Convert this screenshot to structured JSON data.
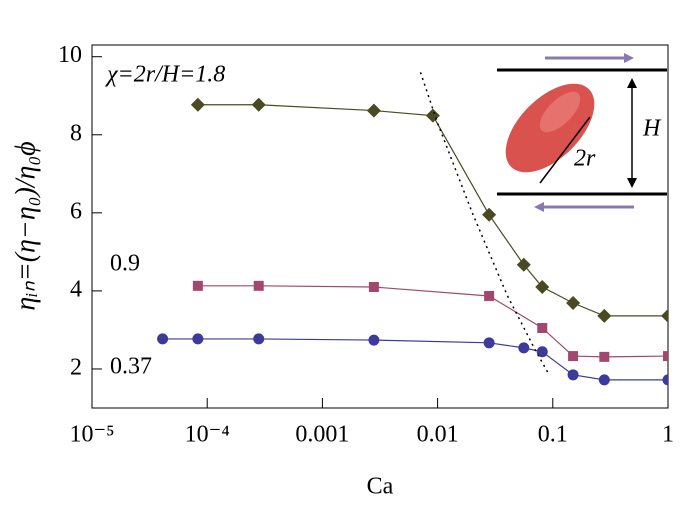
{
  "chart_data": {
    "type": "line",
    "xlabel": "Ca",
    "ylabel": "ηᵢₙ=(η−η₀)/η₀ϕ",
    "xscale": "log",
    "xlim": [
      1e-05,
      1
    ],
    "ylim": [
      1,
      10.3
    ],
    "xticks": [
      {
        "value": 1e-05,
        "label": "10⁻⁵"
      },
      {
        "value": 0.0001,
        "label": "10⁻⁴"
      },
      0.001,
      0.01,
      0.1,
      1
    ],
    "yticks": [
      2,
      4,
      6,
      8,
      10
    ],
    "series": [
      {
        "name": "χ=2r/H=1.8",
        "color": "#4a4a22",
        "marker": "diamond",
        "x": [
          8.3e-05,
          0.00028,
          0.0028,
          0.0091,
          0.028,
          0.056,
          0.081,
          0.15,
          0.28,
          1
        ],
        "values": [
          8.77,
          8.77,
          8.62,
          8.49,
          5.95,
          4.67,
          4.1,
          3.69,
          3.36,
          3.36
        ]
      },
      {
        "name": "0.9",
        "color": "#a2486f",
        "marker": "square",
        "x": [
          8.3e-05,
          0.00028,
          0.0028,
          0.028,
          0.081,
          0.15,
          0.28,
          1
        ],
        "values": [
          4.13,
          4.13,
          4.1,
          3.87,
          3.05,
          2.33,
          2.31,
          2.33
        ]
      },
      {
        "name": "0.37",
        "color": "#3b3b9c",
        "marker": "circle",
        "x": [
          4.1e-05,
          8.3e-05,
          0.00028,
          0.0028,
          0.028,
          0.056,
          0.081,
          0.15,
          0.28,
          1
        ],
        "values": [
          2.77,
          2.77,
          2.77,
          2.74,
          2.67,
          2.54,
          2.44,
          1.85,
          1.72,
          1.72
        ]
      },
      {
        "color": "#000000",
        "dash": "dotted",
        "x": [
          0.0071,
          0.01,
          0.02,
          0.04,
          0.07,
          0.093
        ],
        "values": [
          9.6,
          8.3,
          6.0,
          3.9,
          2.5,
          1.85
        ]
      }
    ],
    "inset": {
      "height_label": "H",
      "diameter_label": "2r"
    }
  }
}
